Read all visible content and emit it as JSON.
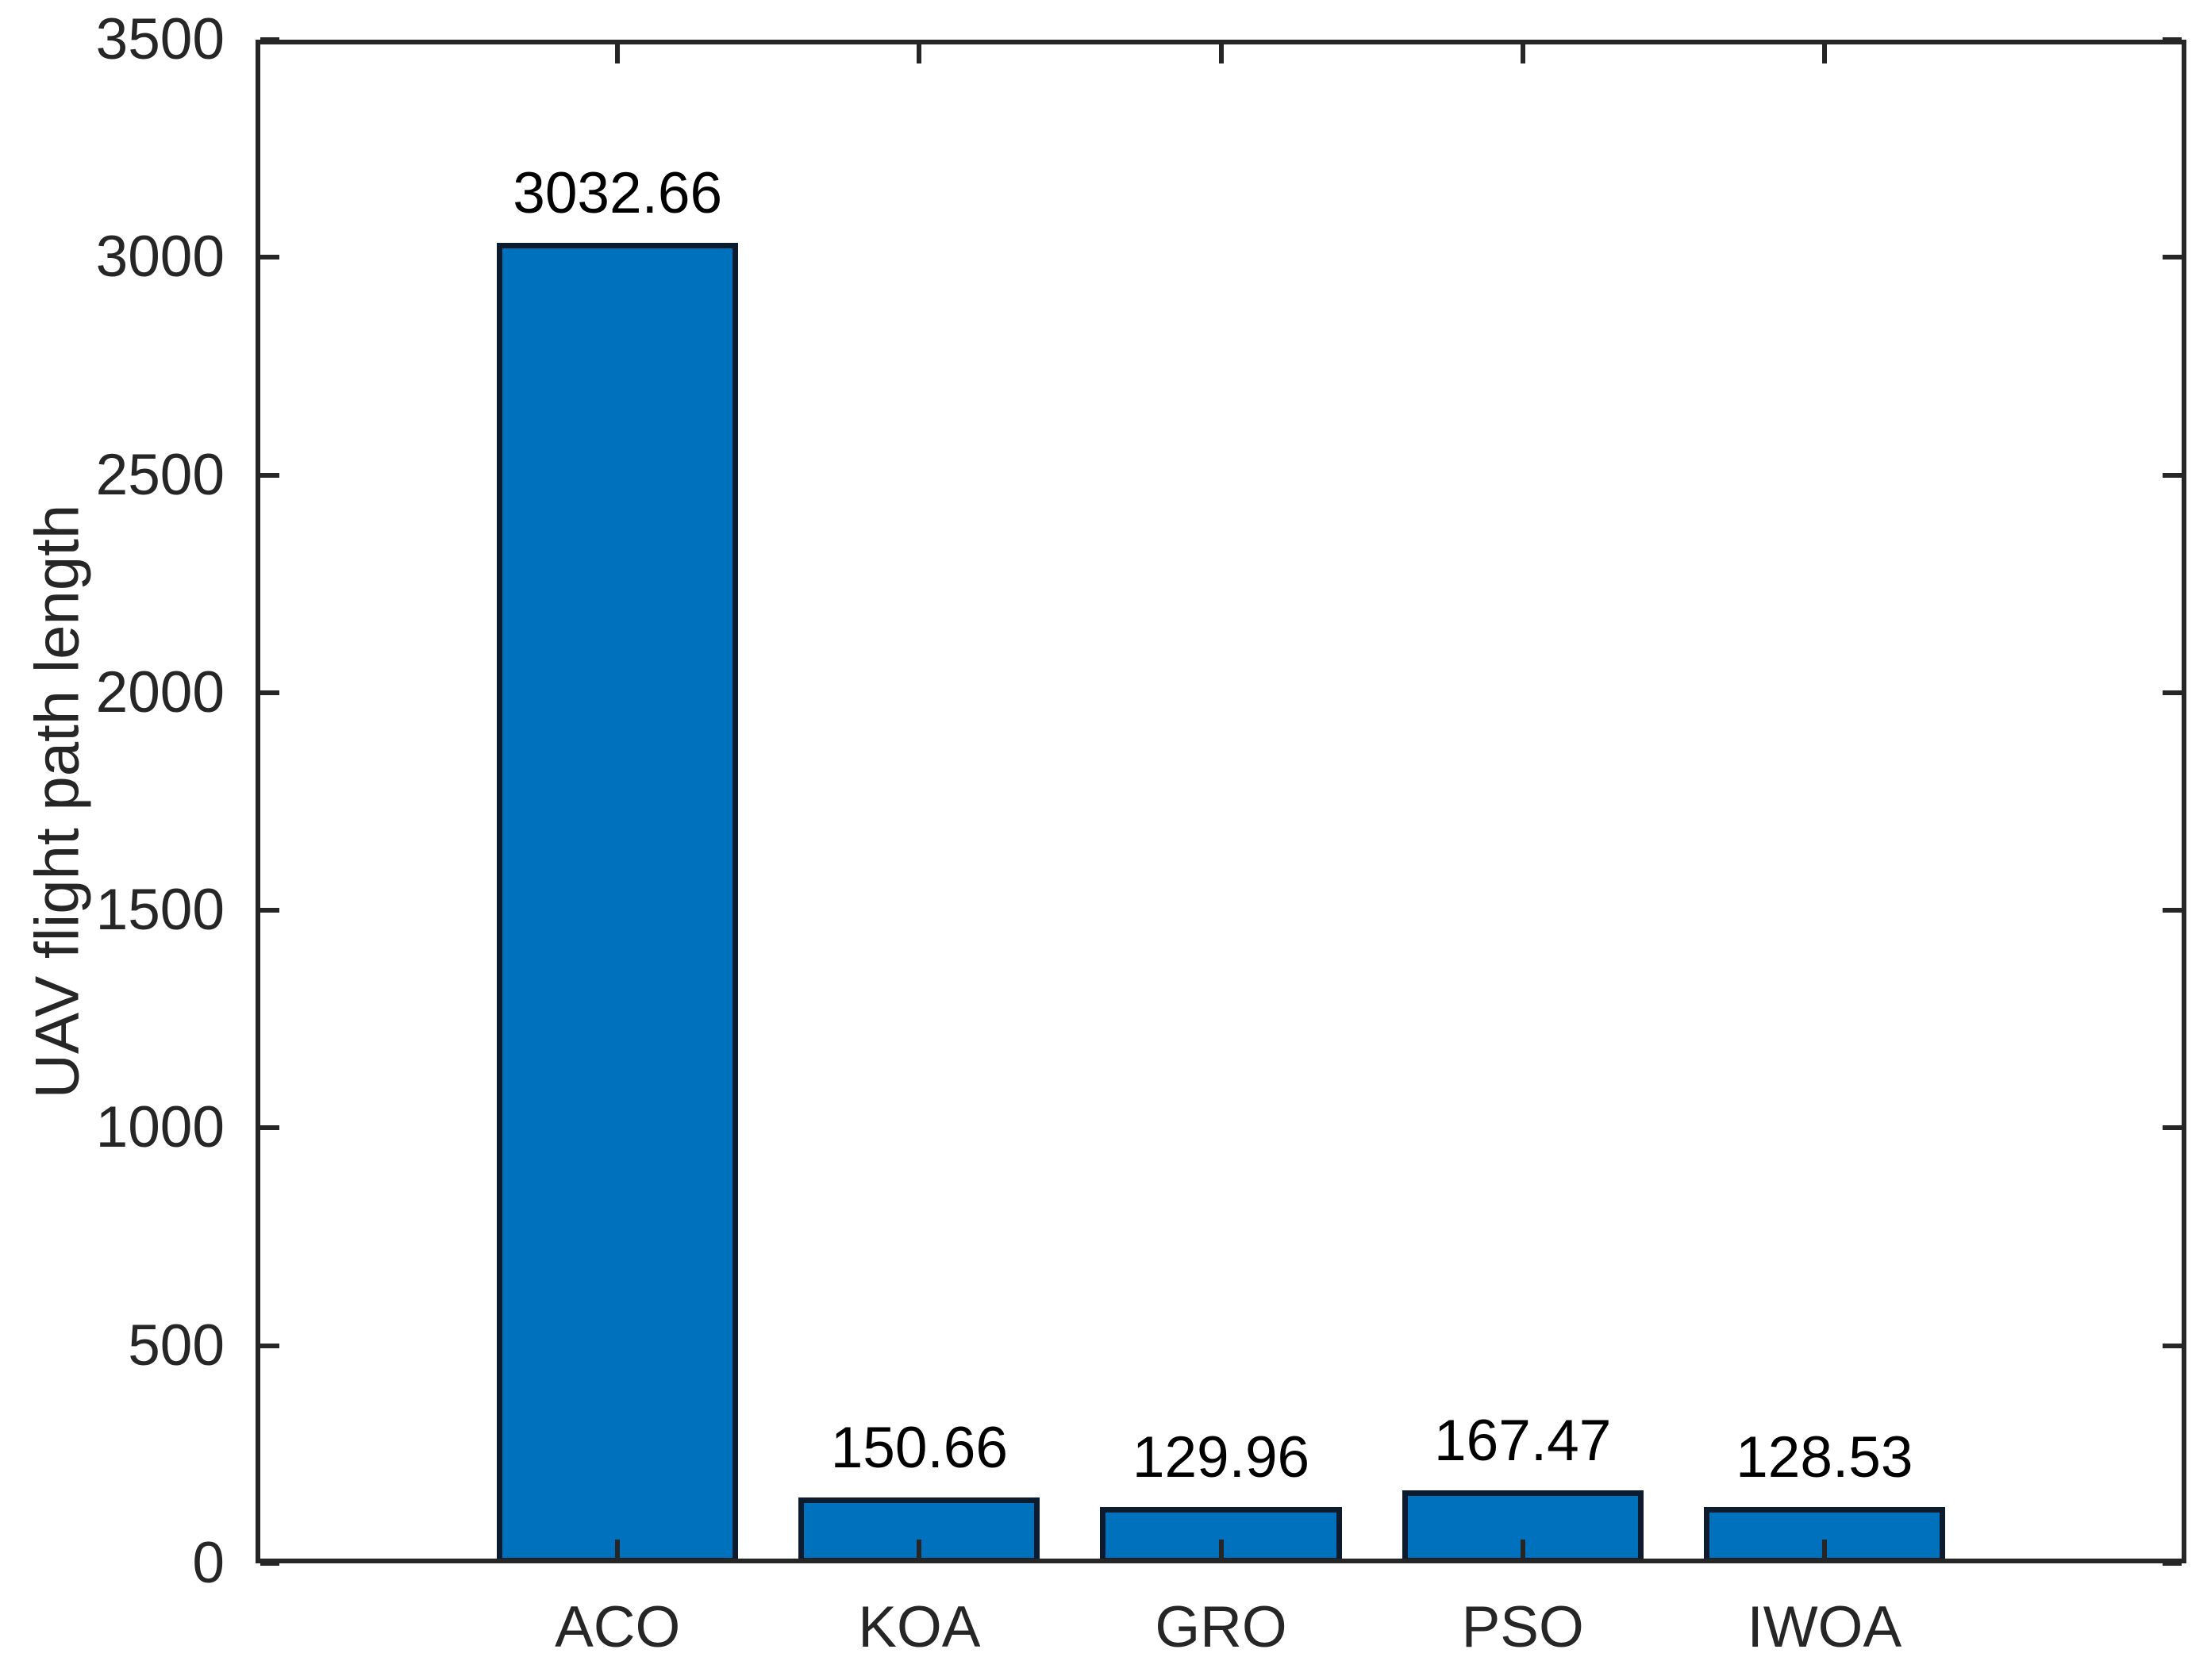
{
  "chart_data": {
    "type": "bar",
    "categories": [
      "ACO",
      "KOA",
      "GRO",
      "PSO",
      "IWOA"
    ],
    "values": [
      3032.66,
      150.66,
      129.96,
      167.47,
      128.53
    ],
    "value_labels": [
      "3032.66",
      "150.66",
      "129.96",
      "167.47",
      "128.53"
    ],
    "title": "",
    "xlabel": "",
    "ylabel": "UAV flight path length",
    "ylim": [
      0,
      3500
    ],
    "yticks": [
      0,
      500,
      1000,
      1500,
      2000,
      2500,
      3000,
      3500
    ],
    "xlim": [
      -0.2,
      6.2
    ],
    "bar_rel_width": 0.8,
    "grid": false,
    "legend": null,
    "bar_face_color": "#0072BD",
    "bar_edge_color": "#0D1B2E",
    "axis_color": "#262626",
    "value_label_color": "#000000",
    "tick_direction": "in",
    "box": true
  }
}
